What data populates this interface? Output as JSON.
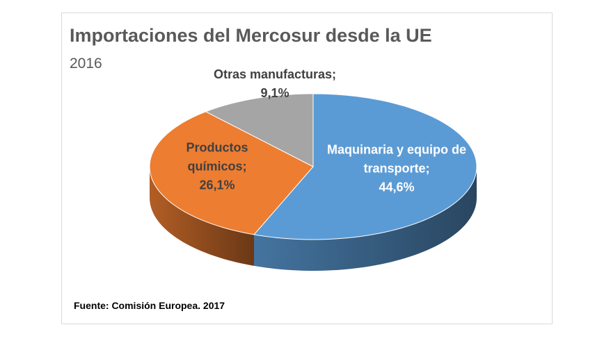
{
  "chart_data": {
    "type": "pie3d",
    "title": "Importaciones del Mercosur desde la UE",
    "subtitle": "2016",
    "categories": [
      "Maquinaria  y equipo de transporte;",
      "Productos químicos;",
      "Otras manufacturas;"
    ],
    "values": [
      44.6,
      26.1,
      9.1
    ],
    "value_labels": [
      "44,6%",
      "26,1%",
      "9,1%"
    ],
    "colors": [
      "#5b9bd5",
      "#ed7d31",
      "#a5a5a5"
    ],
    "source": "Fuente: Comisión Europea. 2017"
  }
}
